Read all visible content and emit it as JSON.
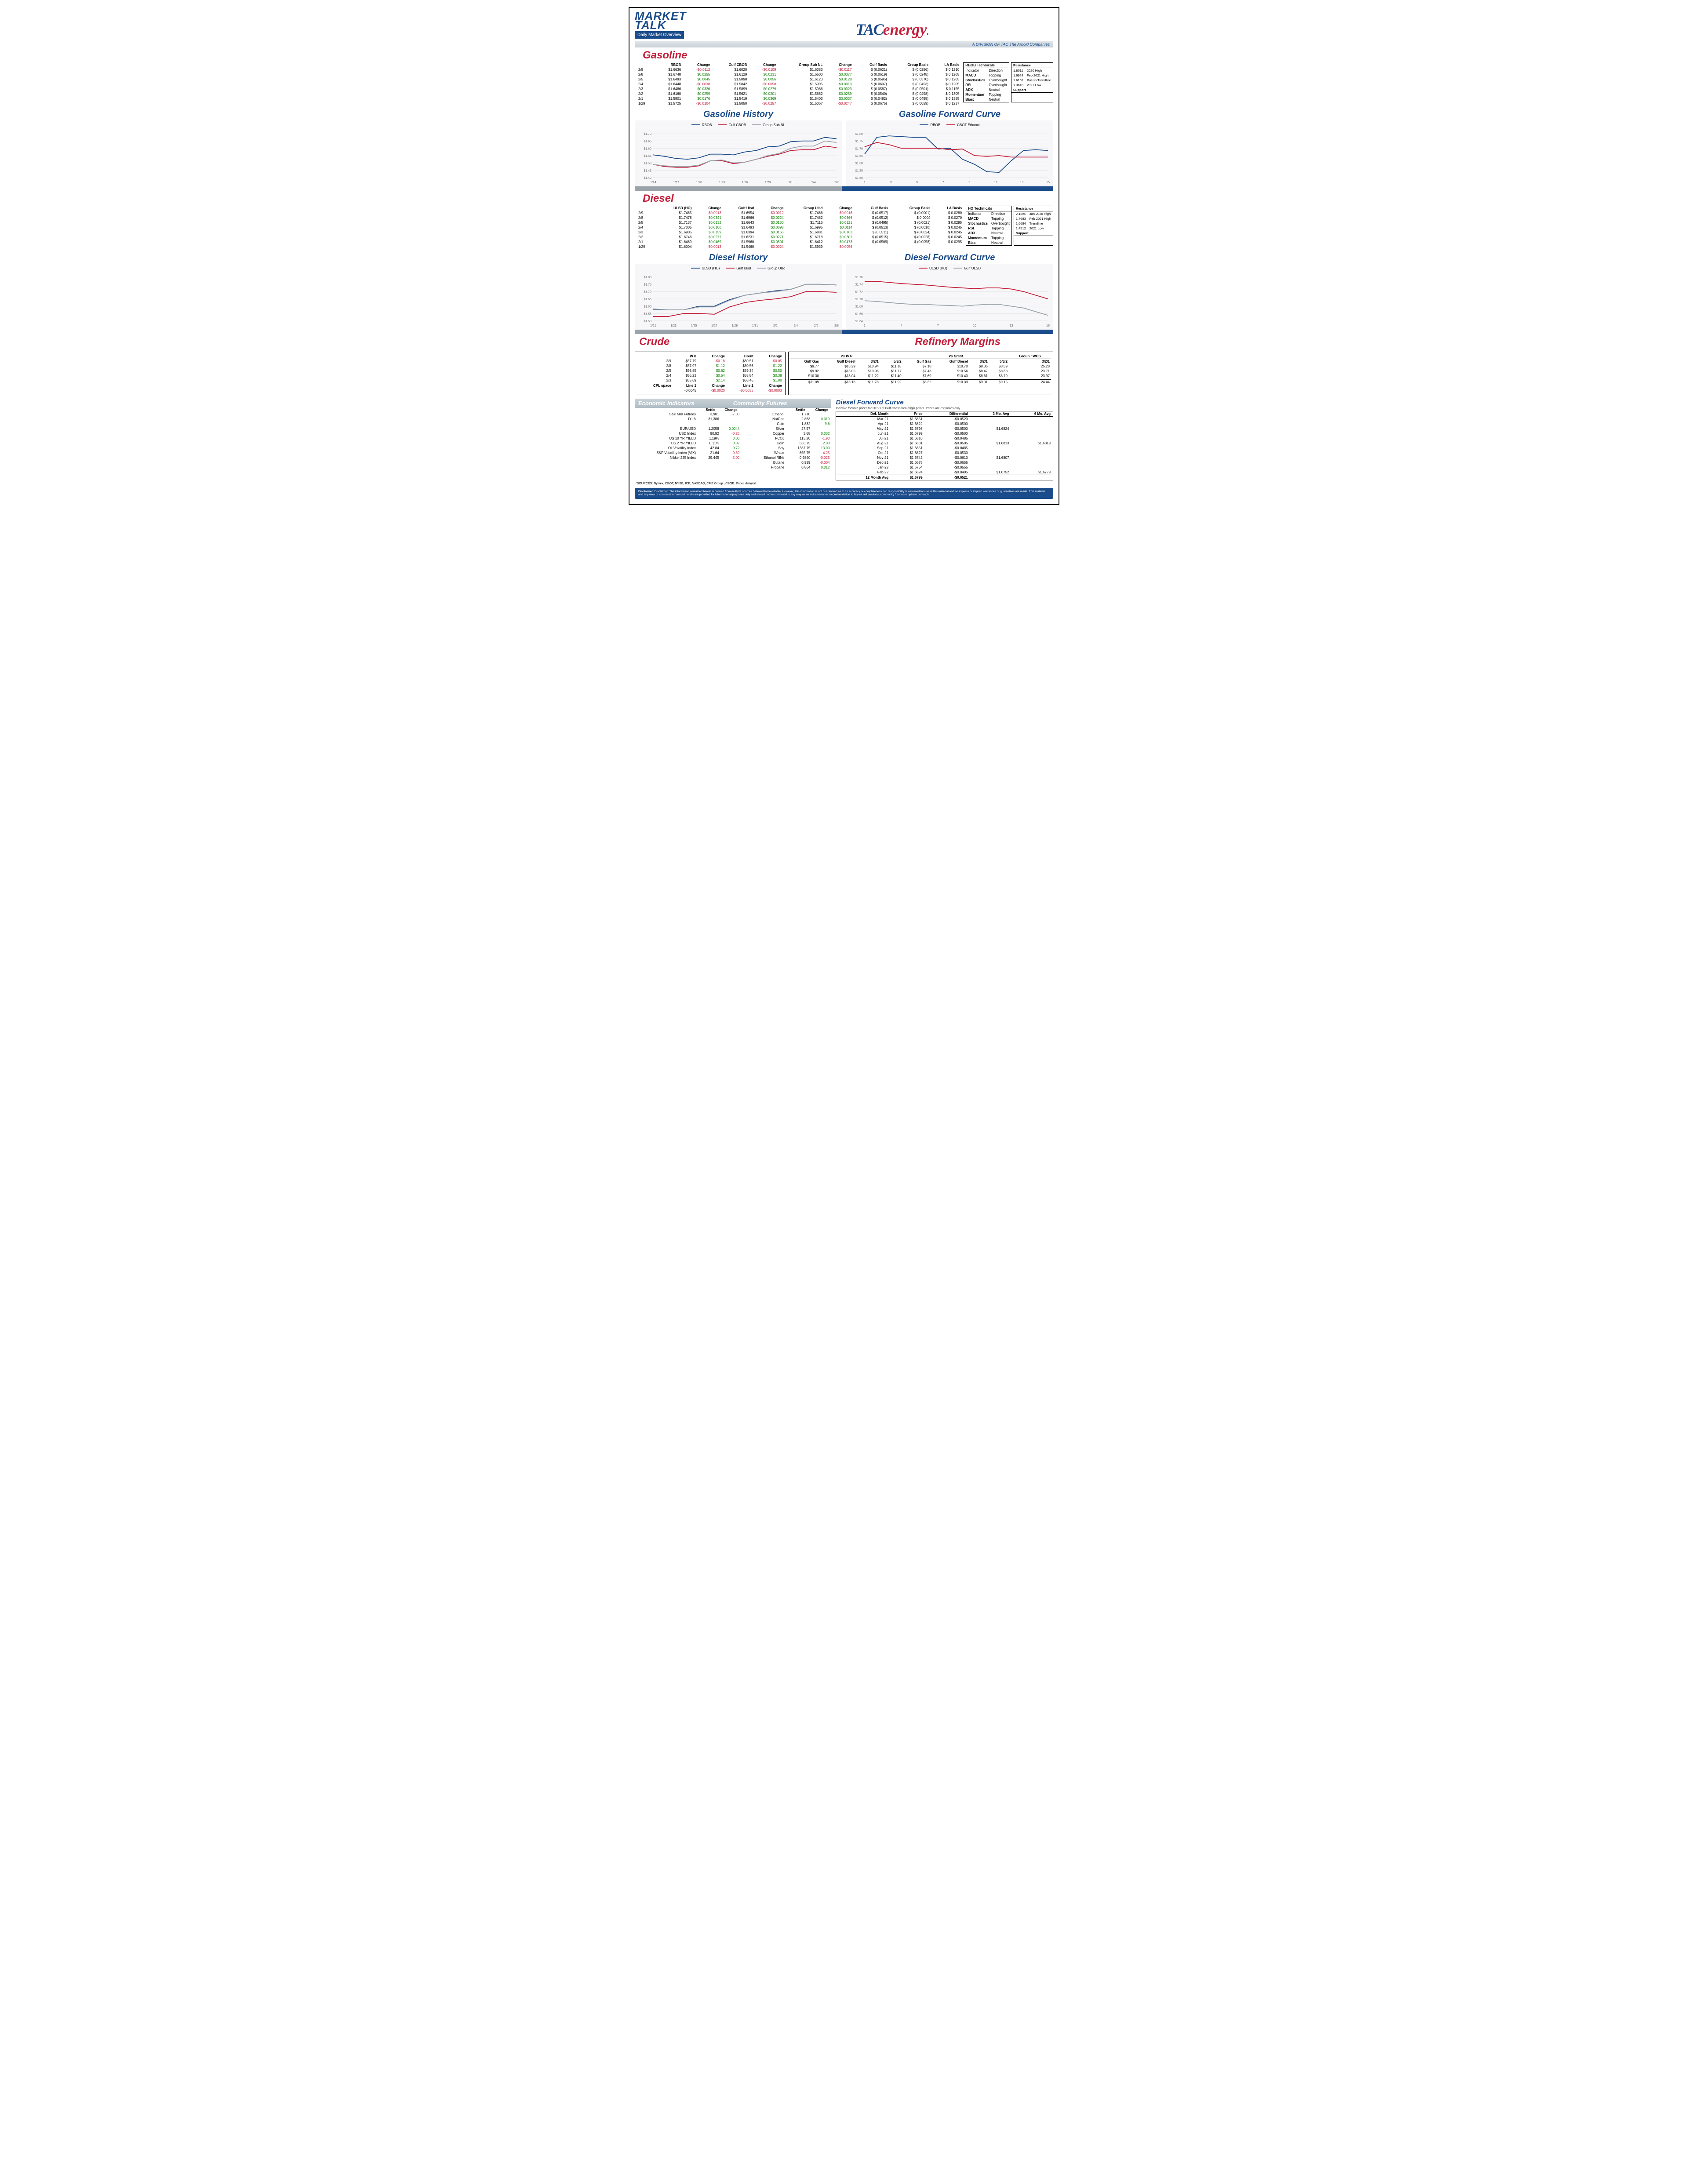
{
  "header": {
    "market": "MARKET",
    "talk": "TALK",
    "sub": "Daily Market Overview",
    "tac": "TAC",
    "energy": "energy",
    "division": "A DIVISION OF TAC The Arnold Companies"
  },
  "gasoline": {
    "title": "Gasoline",
    "cols": [
      "",
      "RBOB",
      "Change",
      "Gulf CBOB",
      "Change",
      "Group Sub NL",
      "Change",
      "Gulf Basis",
      "Group Basis",
      "LA Basis"
    ],
    "rows": [
      [
        "2/9",
        "$1.6636",
        "-$0.0112",
        "$1.6020",
        "-$0.0109",
        "$1.6383",
        "-$0.0117",
        "$ (0.0621)",
        "$     (0.0256)",
        "$    0.1210"
      ],
      [
        "2/8",
        "$1.6748",
        "$0.0255",
        "$1.6129",
        "$0.0231",
        "$1.6500",
        "$0.0377",
        "$ (0.0619)",
        "$     (0.0248)",
        "$    0.1205"
      ],
      [
        "2/5",
        "$1.6493",
        "$0.0045",
        "$1.5898",
        "$0.0056",
        "$1.6123",
        "$0.0128",
        "$ (0.0595)",
        "$     (0.0370)",
        "$    0.1205"
      ],
      [
        "2/4",
        "$1.6448",
        "-$0.0038",
        "$1.5842",
        "-$0.0058",
        "$1.5995",
        "$0.0010",
        "$ (0.0607)",
        "$     (0.0453)",
        "$    0.1205"
      ],
      [
        "2/3",
        "$1.6486",
        "$0.0326",
        "$1.5899",
        "$0.0279",
        "$1.5986",
        "$0.0323",
        "$ (0.0587)",
        "$     (0.0501)",
        "$    0.1155"
      ],
      [
        "2/2",
        "$1.6160",
        "$0.0259",
        "$1.5621",
        "$0.0201",
        "$1.5662",
        "$0.0259",
        "$ (0.0540)",
        "$     (0.0498)",
        "$    0.1305"
      ],
      [
        "2/1",
        "$1.5901",
        "$0.0176",
        "$1.5419",
        "$0.0369",
        "$1.5403",
        "$0.0337",
        "$ (0.0482)",
        "$     (0.0498)",
        "$    0.1355"
      ],
      [
        "1/29",
        "$1.5725",
        "-$0.0104",
        "$1.5050",
        "-$0.0257",
        "$1.5067",
        "-$0.0247",
        "$ (0.0675)",
        "$     (0.0659)",
        "$    0.1237"
      ]
    ],
    "tech": {
      "hd": "RBOB Technicals",
      "cols": [
        "Indicator",
        "Direction"
      ],
      "rows": [
        [
          "MACD",
          "Topping"
        ],
        [
          "Stochastics",
          "Overbought"
        ],
        [
          "RSI",
          "Overbought"
        ],
        [
          "ADX",
          "Neutral"
        ],
        [
          "Momentum",
          "Topping"
        ],
        [
          "Bias:",
          "Neutral"
        ]
      ]
    },
    "res": {
      "hd": "Resistance",
      "rows": [
        [
          "1.8011",
          "2020 High"
        ],
        [
          "1.6924",
          "Feb 2021 High"
        ],
        [
          "1.6152",
          "Bullish Trendline"
        ],
        [
          "1.3618",
          "2021 Low"
        ]
      ],
      "sup": "Support"
    },
    "hist_title": "Gasoline History",
    "fc_title": "Gasoline Forward Curve",
    "hist": {
      "series": [
        {
          "name": "RBOB",
          "color": "#1a4b8a",
          "y": [
            1.555,
            1.545,
            1.53,
            1.525,
            1.535,
            1.56,
            1.56,
            1.555,
            1.575,
            1.585,
            1.61,
            1.615,
            1.645,
            1.65,
            1.65,
            1.675,
            1.665
          ]
        },
        {
          "name": "Gulf CBOB",
          "color": "#c41e3a",
          "y": [
            1.49,
            1.475,
            1.47,
            1.47,
            1.48,
            1.515,
            1.515,
            1.495,
            1.505,
            1.525,
            1.545,
            1.56,
            1.585,
            1.59,
            1.59,
            1.615,
            1.605
          ]
        },
        {
          "name": "Group Sub NL",
          "color": "#9aa3a9",
          "y": [
            1.49,
            1.48,
            1.475,
            1.475,
            1.485,
            1.515,
            1.52,
            1.5,
            1.505,
            1.525,
            1.55,
            1.565,
            1.6,
            1.615,
            1.615,
            1.65,
            1.64
          ]
        }
      ],
      "ylim": [
        1.4,
        1.7
      ],
      "yticks": [
        "$1.40",
        "$1.45",
        "$1.50",
        "$1.55",
        "$1.60",
        "$1.65",
        "$1.70"
      ],
      "xticks": [
        "1/14",
        "1/17",
        "1/20",
        "1/23",
        "1/26",
        "1/29",
        "2/1",
        "2/4",
        "2/7"
      ]
    },
    "fc": {
      "series": [
        {
          "name": "RBOB",
          "color": "#1a4b8a",
          "y": [
            1.66,
            1.775,
            1.785,
            1.78,
            1.775,
            1.775,
            1.695,
            1.7,
            1.625,
            1.59,
            1.54,
            1.535,
            1.615,
            1.685,
            1.69,
            1.685
          ]
        },
        {
          "name": "CBOT Ethanol",
          "color": "#c41e3a",
          "y": [
            1.71,
            1.74,
            1.725,
            1.7,
            1.7,
            1.7,
            1.7,
            1.69,
            1.695,
            1.65,
            1.645,
            1.65,
            1.64,
            1.64,
            1.64,
            1.64
          ]
        }
      ],
      "ylim": [
        1.5,
        1.8
      ],
      "yticks": [
        "$1.50",
        "$1.55",
        "$1.60",
        "$1.65",
        "$1.70",
        "$1.75",
        "$1.80"
      ],
      "xticks": [
        "1",
        "3",
        "5",
        "7",
        "9",
        "11",
        "13",
        "15"
      ]
    }
  },
  "diesel": {
    "title": "Diesel",
    "cols": [
      "",
      "ULSD (HO)",
      "Change",
      "Gulf Ulsd",
      "Change",
      "Group Ulsd",
      "Change",
      "Gulf Basis",
      "Group Basis",
      "LA Basis"
    ],
    "rows": [
      [
        "2/9",
        "$1.7465",
        "-$0.0013",
        "$1.6954",
        "-$0.0012",
        "$1.7466",
        "-$0.0016",
        "$ (0.0517)",
        "$     (0.0001)",
        "$    0.0280"
      ],
      [
        "2/8",
        "$1.7478",
        "$0.0341",
        "$1.6966",
        "$0.0324",
        "$1.7482",
        "$0.0366",
        "$ (0.0512)",
        "$      0.0004",
        "$    0.0270"
      ],
      [
        "2/5",
        "$1.7137",
        "$0.0132",
        "$1.6643",
        "$0.0150",
        "$1.7116",
        "$0.0121",
        "$ (0.0495)",
        "$     (0.0021)",
        "$    0.0295"
      ],
      [
        "2/4",
        "$1.7005",
        "$0.0100",
        "$1.6493",
        "$0.0098",
        "$1.6995",
        "$0.0114",
        "$ (0.0513)",
        "$     (0.0010)",
        "$    0.0245"
      ],
      [
        "2/3",
        "$1.6905",
        "$0.0159",
        "$1.6394",
        "$0.0163",
        "$1.6881",
        "$0.0163",
        "$ (0.0511)",
        "$     (0.0024)",
        "$    0.0245"
      ],
      [
        "2/2",
        "$1.6746",
        "$0.0277",
        "$1.6231",
        "$0.0271",
        "$1.6718",
        "$0.0307",
        "$ (0.0515)",
        "$     (0.0028)",
        "$    0.0245"
      ],
      [
        "2/1",
        "$1.6469",
        "$0.0465",
        "$1.5960",
        "$0.0501",
        "$1.6412",
        "$0.0473",
        "$ (0.0509)",
        "$     (0.0058)",
        "$    0.0295"
      ],
      [
        "1/29",
        "$1.6004",
        "-$0.0013",
        "$1.5460",
        "-$0.0024",
        "$1.5939",
        "-$0.0056",
        "",
        "",
        ""
      ]
    ],
    "tech": {
      "hd": "HO Technicals",
      "cols": [
        "Indicator",
        "Direction"
      ],
      "rows": [
        [
          "MACD",
          "Topping"
        ],
        [
          "Stochastics",
          "Overbought"
        ],
        [
          "RSI",
          "Topping"
        ],
        [
          "ADX",
          "Neutral"
        ],
        [
          "Momentum",
          "Topping"
        ],
        [
          "Bias:",
          "Neutral"
        ]
      ]
    },
    "res": {
      "hd": "Resistance",
      "rows": [
        [
          "2.1195",
          "Jan 2020 High"
        ],
        [
          "1.7683",
          "Feb 2021 High"
        ],
        [
          "1.6694",
          "Trendline"
        ],
        [
          "1.4512",
          "2021 Low"
        ]
      ],
      "sup": "Support"
    },
    "hist_title": "Diesel History",
    "fc_title": "Diesel Forward Curve",
    "hist": {
      "series": [
        {
          "name": "ULSD (HO)",
          "color": "#1a4b8a",
          "y": [
            1.58,
            1.575,
            1.575,
            1.6,
            1.6,
            1.645,
            1.675,
            1.69,
            1.705,
            1.715,
            1.75,
            1.75,
            1.745
          ]
        },
        {
          "name": "Gulf Ulsd",
          "color": "#c41e3a",
          "y": [
            1.53,
            1.53,
            1.55,
            1.55,
            1.545,
            1.595,
            1.625,
            1.64,
            1.65,
            1.665,
            1.7,
            1.7,
            1.695
          ]
        },
        {
          "name": "Group Ulsd",
          "color": "#9aa3a9",
          "y": [
            1.575,
            1.575,
            1.575,
            1.595,
            1.595,
            1.64,
            1.675,
            1.69,
            1.7,
            1.715,
            1.75,
            1.75,
            1.745
          ]
        }
      ],
      "ylim": [
        1.5,
        1.8
      ],
      "yticks": [
        "$1.50",
        "$1.55",
        "$1.60",
        "$1.65",
        "$1.70",
        "$1.75",
        "$1.80"
      ],
      "xticks": [
        "1/21",
        "1/23",
        "1/25",
        "1/27",
        "1/29",
        "1/31",
        "2/2",
        "2/4",
        "2/6",
        "2/8"
      ]
    },
    "fc": {
      "series": [
        {
          "name": "ULSD (HO)",
          "color": "#c41e3a",
          "y": [
            1.747,
            1.748,
            1.745,
            1.742,
            1.74,
            1.738,
            1.735,
            1.732,
            1.73,
            1.728,
            1.73,
            1.73,
            1.727,
            1.72,
            1.71,
            1.7
          ]
        },
        {
          "name": "Gulf ULSD",
          "color": "#9aa3a9",
          "y": [
            1.695,
            1.693,
            1.69,
            1.687,
            1.685,
            1.685,
            1.683,
            1.682,
            1.68,
            1.683,
            1.685,
            1.685,
            1.68,
            1.675,
            1.665,
            1.655
          ]
        }
      ],
      "ylim": [
        1.64,
        1.76
      ],
      "yticks": [
        "$1.64",
        "$1.66",
        "$1.68",
        "$1.70",
        "$1.72",
        "$1.74",
        "$1.76"
      ],
      "xticks": [
        "1",
        "4",
        "7",
        "10",
        "13",
        "16"
      ]
    }
  },
  "crude": {
    "title": "Crude",
    "cols": [
      "",
      "WTI",
      "Change",
      "Brent",
      "Change"
    ],
    "rows": [
      [
        "2/9",
        "$57.79",
        "-$0.18",
        "$60.51",
        "-$0.05"
      ],
      [
        "2/8",
        "$57.97",
        "$1.12",
        "$60.56",
        "$1.22"
      ],
      [
        "2/5",
        "$56.85",
        "$0.62",
        "$59.34",
        "$0.50"
      ],
      [
        "2/4",
        "$56.23",
        "$0.54",
        "$58.84",
        "$0.38"
      ],
      [
        "2/3",
        "$55.69",
        "$2.14",
        "$58.46",
        "$1.00"
      ]
    ],
    "cpl": [
      "CPL space",
      "Line 1",
      "Change",
      "Line 2",
      "Change"
    ],
    "cplv": [
      "",
      "-0.0045",
      "-$0.0020",
      "-$0.0035",
      "-$0.0003"
    ]
  },
  "margins": {
    "title": "Refinery Margins",
    "hd1": "Vs WTI",
    "hd2": "Vs Brent",
    "hd3": "Group / WCS",
    "cols": [
      "Gulf Gas",
      "Gulf Diesel",
      "3/2/1",
      "5/3/2",
      "Gulf Gas",
      "Gulf Diesel",
      "3/2/1",
      "5/3/2",
      "3/2/1"
    ],
    "rows": [
      [
        "$9.77",
        "$13.29",
        "$10.94",
        "$11.18",
        "$7.18",
        "$10.70",
        "$8.35",
        "$8.59",
        "25.28"
      ],
      [
        "$9.92",
        "$13.05",
        "$10.96",
        "$11.17",
        "$7.43",
        "$10.56",
        "$8.47",
        "$8.68",
        "23.71"
      ],
      [
        "$10.30",
        "$13.04",
        "$11.22",
        "$11.40",
        "$7.69",
        "$10.43",
        "$8.61",
        "$8.79",
        "23.97"
      ],
      [
        "",
        "",
        "",
        "",
        "",
        "",
        "",
        "",
        ""
      ],
      [
        "$11.09",
        "$13.16",
        "$11.78",
        "$11.92",
        "$8.32",
        "$10.39",
        "$9.01",
        "$9.15",
        "24.44"
      ]
    ]
  },
  "econ": {
    "band1": "Economic Indicators",
    "band2": "Commodity Futures",
    "left": [
      [
        "S&P 500 Futures",
        "3,901",
        "-7.00"
      ],
      [
        "DJIA",
        "31,386",
        ""
      ],
      [
        "",
        "",
        ""
      ],
      [
        "EUR/USD",
        "1.2058",
        "0.0044"
      ],
      [
        "USD Index",
        "90.92",
        "-0.26"
      ],
      [
        "US 10 YR YIELD",
        "1.19%",
        "0.00"
      ],
      [
        "US 2 YR YIELD",
        "0.11%",
        "0.02"
      ],
      [
        "Oil Volatility Index",
        "42.84",
        "0.72"
      ],
      [
        "S&P Volatility Index (VIX)",
        "21.64",
        "-0.39"
      ],
      [
        "Nikkei 225 Index",
        "29,445",
        "-5.00"
      ]
    ],
    "right": [
      [
        "Ethanol",
        "1.710",
        ""
      ],
      [
        "NatGas",
        "2.863",
        "0.019"
      ],
      [
        "Gold",
        "1,832",
        "9.6"
      ],
      [
        "Silver",
        "27.57",
        ""
      ],
      [
        "Copper",
        "3.68",
        "0.032"
      ],
      [
        "FCOJ",
        "113.20",
        "-1.90"
      ],
      [
        "Corn",
        "563.75",
        "2.00"
      ],
      [
        "Soy",
        "1387.75",
        "13.00"
      ],
      [
        "Wheat",
        "655.75",
        "-4.25"
      ],
      [
        "Ethanol RINs",
        "0.9840",
        "-0.025"
      ],
      [
        "Butane",
        "0.939",
        "-0.004"
      ],
      [
        "Propane",
        "0.864",
        "0.012"
      ]
    ],
    "rcols": [
      "",
      "Settle",
      "Change"
    ],
    "lcols": [
      "",
      "Settle",
      "Change"
    ]
  },
  "dfc": {
    "title": "Diesel Forward Curve",
    "sub": "Indictive forward prices for ULSD at Gulf Coast area origin points.  Prices are estimates only.",
    "cols": [
      "Del. Month",
      "Price",
      "Differential",
      "3 Mo. Avg",
      "6 Mo. Avg"
    ],
    "rows": [
      [
        "Mar-21",
        "$1.6851",
        "-$0.0520",
        "",
        ""
      ],
      [
        "Apr-21",
        "$1.6822",
        "-$0.0500",
        "",
        ""
      ],
      [
        "May-21",
        "$1.6798",
        "-$0.0500",
        "$1.6824",
        ""
      ],
      [
        "Jun-21",
        "$1.6799",
        "-$0.0500",
        "",
        ""
      ],
      [
        "Jul-21",
        "$1.6810",
        "-$0.0485",
        "",
        ""
      ],
      [
        "Aug-21",
        "$1.6831",
        "-$0.0505",
        "$1.6813",
        "$1.6819"
      ],
      [
        "Sep-21",
        "$1.6851",
        "-$0.0485",
        "",
        ""
      ],
      [
        "Oct-21",
        "$1.6827",
        "-$0.0530",
        "",
        ""
      ],
      [
        "Nov-21",
        "$1.6742",
        "-$0.0610",
        "$1.6807",
        ""
      ],
      [
        "Dec-21",
        "$1.6678",
        "-$0.0655",
        "",
        ""
      ],
      [
        "Jan-22",
        "$1.6754",
        "-$0.0555",
        "",
        ""
      ],
      [
        "Feb-22",
        "$1.6824",
        "-$0.0405",
        "$1.6752",
        "$1.6779"
      ]
    ],
    "last": [
      "12 Month Avg",
      "$1.6799",
      "-$0.0521",
      "",
      ""
    ]
  },
  "sources": "*SOURCES: Nymex, CBOT, NYSE, ICE, NASDAQ, CME Group , CBOE.   Prices delayed.",
  "disclaimer": "Disclaimer: The information contained herein is derived from multiple sources believed to be reliable.  However, this information is not guaranteed as to its accuracy or completeness. No responsibility is assumed for use of this material and no express or implied warranties or guarantees are made. This material and any view or comment expressed herein are provided for informational purposes only and should not be construed in any way as an inducement or recommendation to buy or sell products, commodity futures or options contracts."
}
